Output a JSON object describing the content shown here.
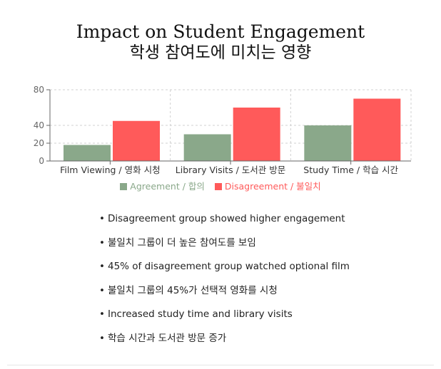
{
  "title": "Impact on Student Engagement",
  "subtitle": "학생 참여도에 미치는 영향",
  "chart_data": {
    "type": "bar",
    "categories": [
      "Film Viewing / 영화 시청",
      "Library Visits / 도서관 방문",
      "Study Time / 학습 시간"
    ],
    "series": [
      {
        "name": "Agreement / 합의",
        "values": [
          18,
          30,
          40
        ],
        "color": "#8aa88a"
      },
      {
        "name": "Disagreement / 불일치",
        "values": [
          45,
          60,
          70
        ],
        "color": "#ff5a5a"
      }
    ],
    "ylim": [
      0,
      80
    ],
    "yticks": [
      "0",
      "20",
      "40",
      "80"
    ],
    "ytick_values": [
      0,
      20,
      40,
      80
    ],
    "grid": true,
    "legend_position": "bottom"
  },
  "notes": [
    "Disagreement group showed higher engagement",
    "불일치 그룹이 더 높은 참여도를 보임",
    "45% of disagreement group watched optional film",
    "불일치 그룹의 45%가 선택적 영화를 시청",
    "Increased study time and library visits",
    "학습 시간과 도서관 방문 증가"
  ],
  "bullet": "•"
}
